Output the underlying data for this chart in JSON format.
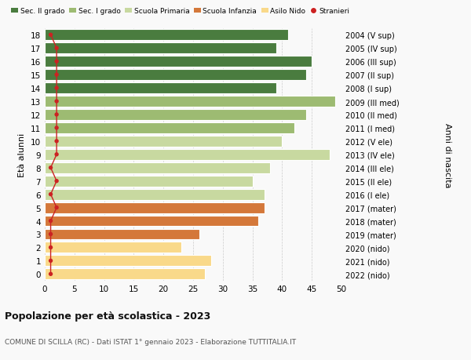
{
  "ages": [
    0,
    1,
    2,
    3,
    4,
    5,
    6,
    7,
    8,
    9,
    10,
    11,
    12,
    13,
    14,
    15,
    16,
    17,
    18
  ],
  "values": [
    27,
    28,
    23,
    26,
    36,
    37,
    37,
    35,
    38,
    48,
    40,
    42,
    44,
    49,
    39,
    44,
    45,
    39,
    41
  ],
  "right_labels": [
    "2022 (nido)",
    "2021 (nido)",
    "2020 (nido)",
    "2019 (mater)",
    "2018 (mater)",
    "2017 (mater)",
    "2016 (I ele)",
    "2015 (II ele)",
    "2014 (III ele)",
    "2013 (IV ele)",
    "2012 (V ele)",
    "2011 (I med)",
    "2010 (II med)",
    "2009 (III med)",
    "2008 (I sup)",
    "2007 (II sup)",
    "2006 (III sup)",
    "2005 (IV sup)",
    "2004 (V sup)"
  ],
  "bar_colors": [
    "#f9d98a",
    "#f9d98a",
    "#f9d98a",
    "#d4783a",
    "#d4783a",
    "#d4783a",
    "#c8d9a0",
    "#c8d9a0",
    "#c8d9a0",
    "#c8d9a0",
    "#c8d9a0",
    "#9dbb72",
    "#9dbb72",
    "#9dbb72",
    "#4a7c3f",
    "#4a7c3f",
    "#4a7c3f",
    "#4a7c3f",
    "#4a7c3f"
  ],
  "legend_labels": [
    "Sec. II grado",
    "Sec. I grado",
    "Scuola Primaria",
    "Scuola Infanzia",
    "Asilo Nido",
    "Stranieri"
  ],
  "legend_colors": [
    "#4a7c3f",
    "#9dbb72",
    "#c8d9a0",
    "#d4783a",
    "#f9d98a",
    "#cc2222"
  ],
  "ylabel": "Età alunni",
  "right_axis_label": "Anni di nascita",
  "title": "Popolazione per età scolastica - 2023",
  "subtitle": "COMUNE DI SCILLA (RC) - Dati ISTAT 1° gennaio 2023 - Elaborazione TUTTITALIA.IT",
  "xlim": [
    0,
    50
  ],
  "xticks": [
    0,
    5,
    10,
    15,
    20,
    25,
    30,
    35,
    40,
    45,
    50
  ],
  "bg_color": "#f9f9f9",
  "stranieri_color": "#cc2222",
  "stranieri_values": [
    1,
    1,
    1,
    1,
    1,
    2,
    1,
    2,
    1,
    2,
    2,
    2,
    2,
    2,
    2,
    2,
    2,
    2,
    1
  ]
}
